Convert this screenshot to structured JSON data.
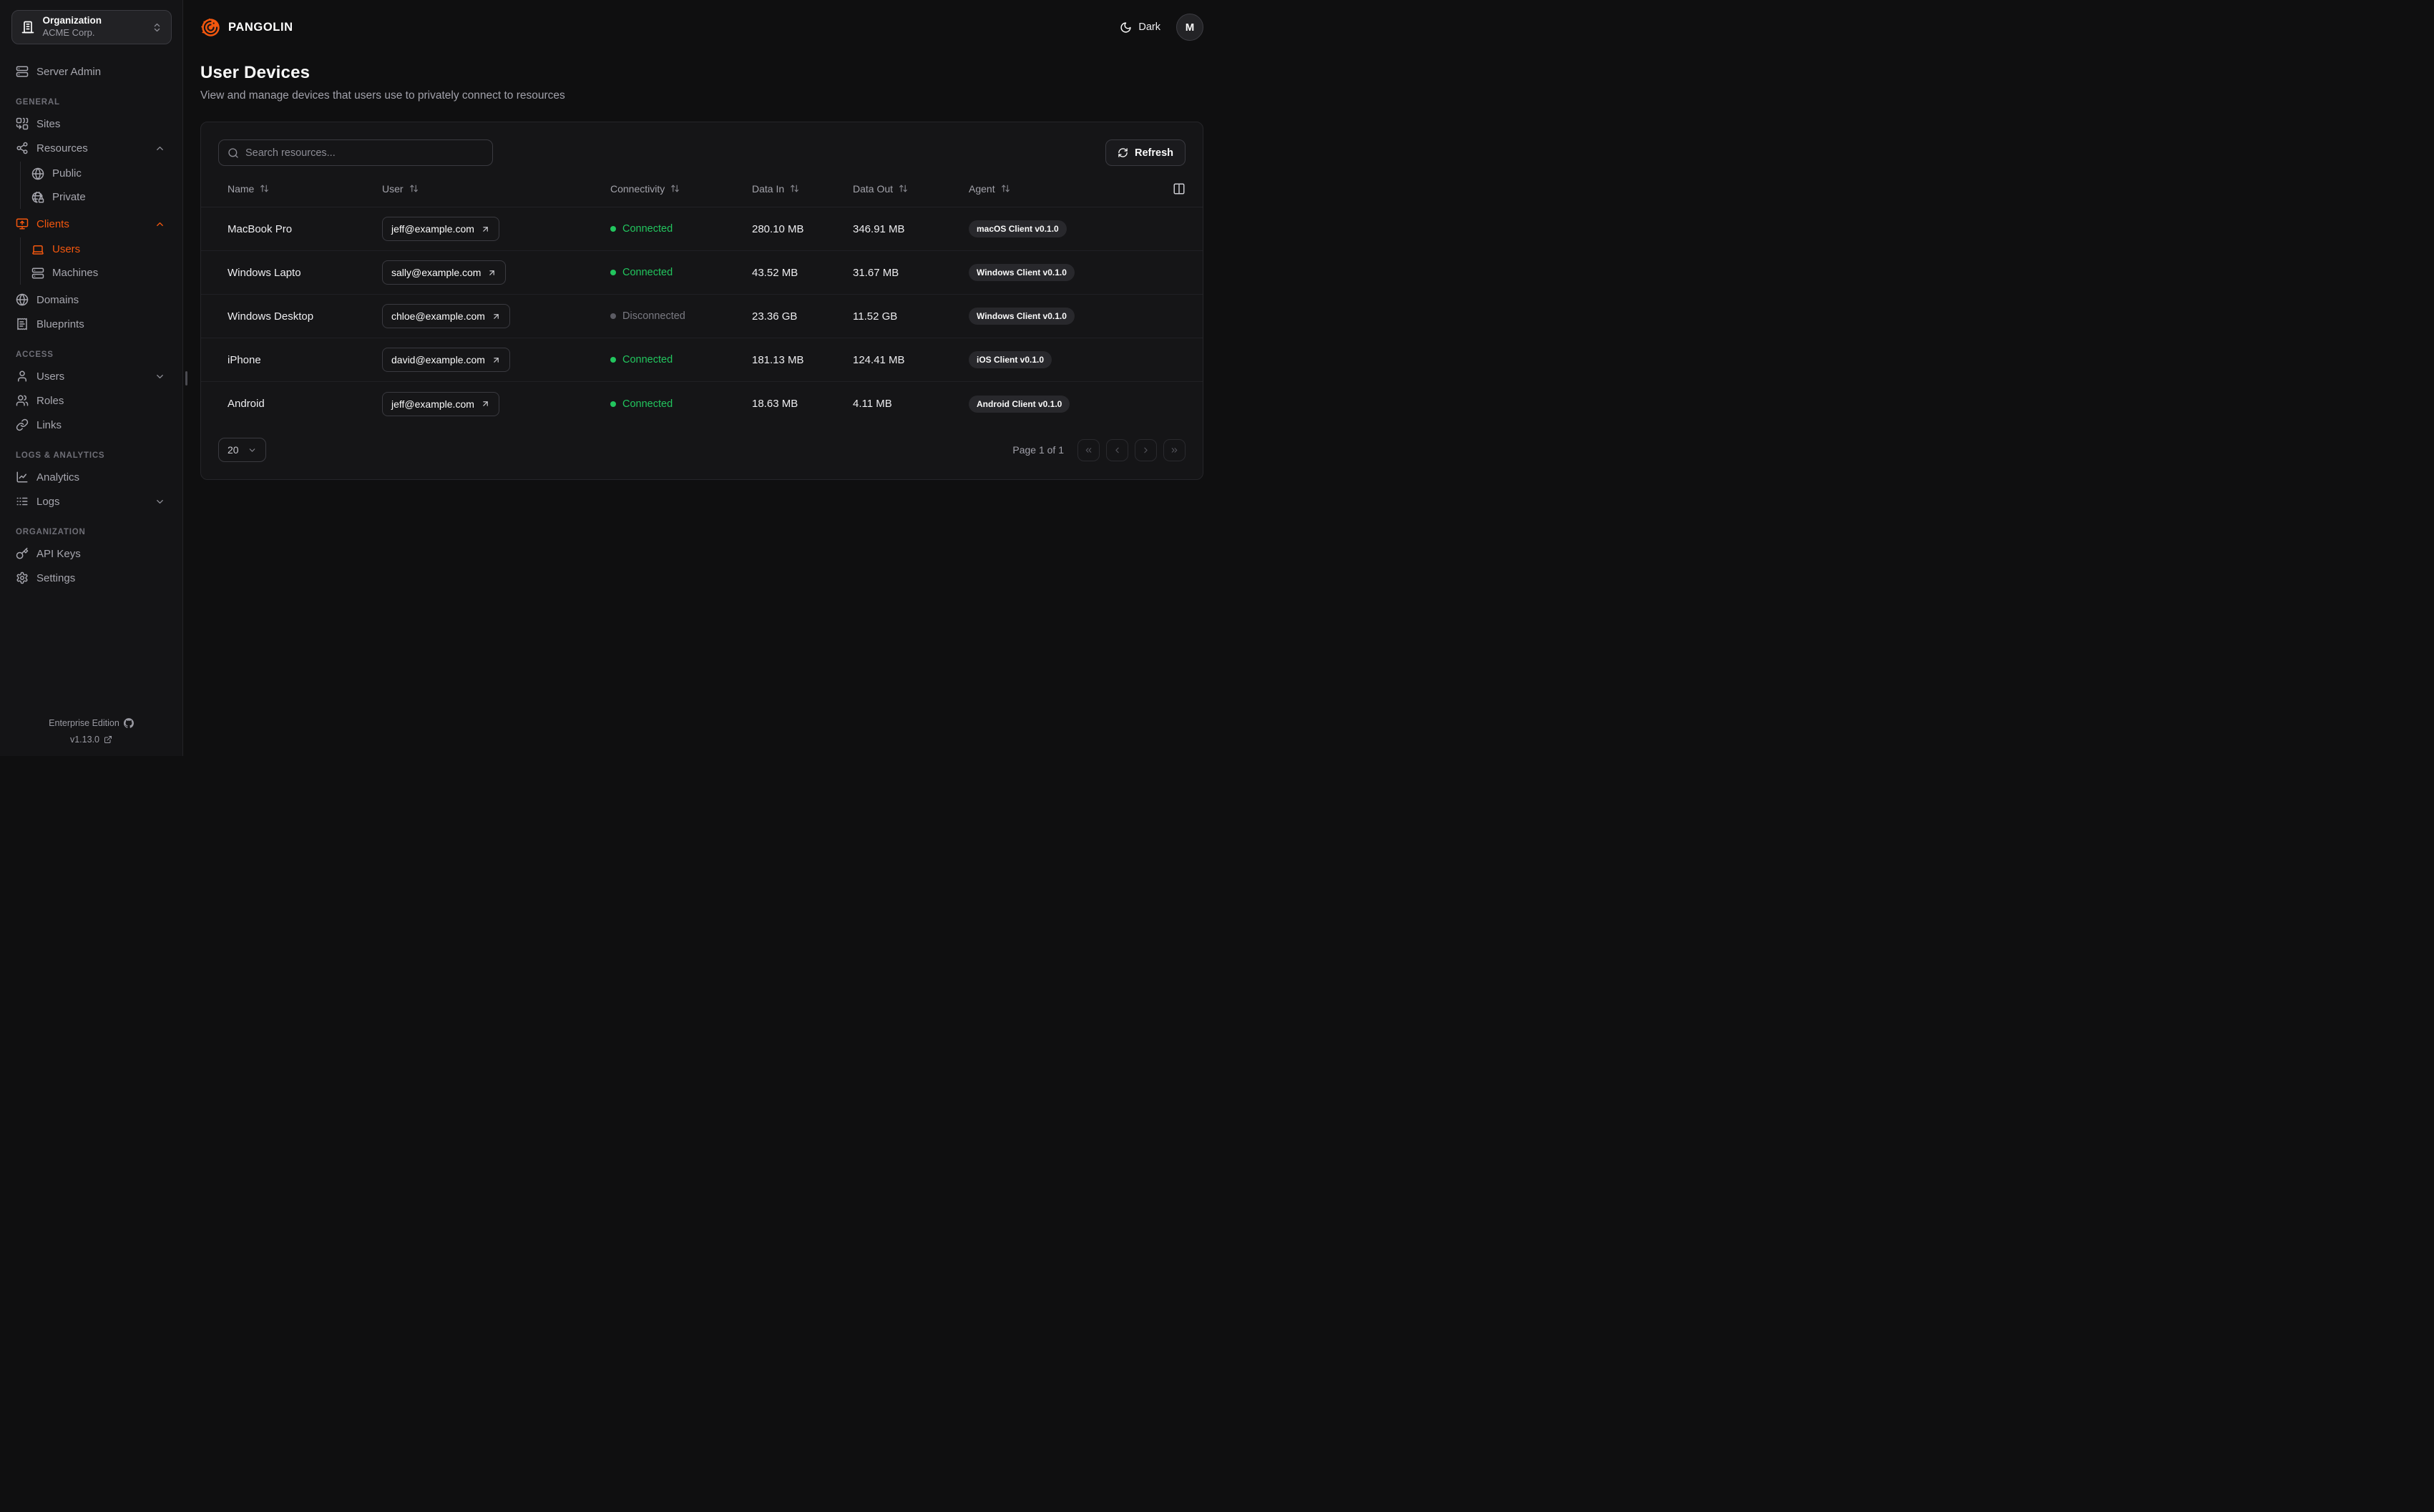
{
  "org_selector": {
    "label": "Organization",
    "value": "ACME Corp."
  },
  "sidebar": {
    "server_admin": "Server Admin",
    "sections": {
      "general": "GENERAL",
      "access": "ACCESS",
      "logs_analytics": "LOGS & ANALYTICS",
      "organization": "ORGANIZATION"
    },
    "items": {
      "sites": "Sites",
      "resources": "Resources",
      "public": "Public",
      "private": "Private",
      "clients": "Clients",
      "client_users": "Users",
      "machines": "Machines",
      "domains": "Domains",
      "blueprints": "Blueprints",
      "users": "Users",
      "roles": "Roles",
      "links": "Links",
      "analytics": "Analytics",
      "logs": "Logs",
      "api_keys": "API Keys",
      "settings": "Settings"
    },
    "footer": {
      "edition": "Enterprise Edition",
      "version": "v1.13.0"
    }
  },
  "header": {
    "brand": "PANGOLIN",
    "theme_label": "Dark",
    "avatar_initial": "M"
  },
  "page": {
    "title": "User Devices",
    "subtitle": "View and manage devices that users use to privately connect to resources"
  },
  "toolbar": {
    "search_placeholder": "Search resources...",
    "refresh_label": "Refresh"
  },
  "table": {
    "columns": {
      "name": "Name",
      "user": "User",
      "connectivity": "Connectivity",
      "data_in": "Data In",
      "data_out": "Data Out",
      "agent": "Agent"
    },
    "rows": [
      {
        "name": "MacBook Pro",
        "user": "jeff@example.com",
        "connectivity": "Connected",
        "connected": true,
        "data_in": "280.10 MB",
        "data_out": "346.91 MB",
        "agent": "macOS Client v0.1.0"
      },
      {
        "name": "Windows Lapto",
        "user": "sally@example.com",
        "connectivity": "Connected",
        "connected": true,
        "data_in": "43.52 MB",
        "data_out": "31.67 MB",
        "agent": "Windows Client v0.1.0"
      },
      {
        "name": "Windows Desktop",
        "user": "chloe@example.com",
        "connectivity": "Disconnected",
        "connected": false,
        "data_in": "23.36 GB",
        "data_out": "11.52 GB",
        "agent": "Windows Client v0.1.0"
      },
      {
        "name": "iPhone",
        "user": "david@example.com",
        "connectivity": "Connected",
        "connected": true,
        "data_in": "181.13 MB",
        "data_out": "124.41 MB",
        "agent": "iOS Client v0.1.0"
      },
      {
        "name": "Android",
        "user": "jeff@example.com",
        "connectivity": "Connected",
        "connected": true,
        "data_in": "18.63 MB",
        "data_out": "4.11 MB",
        "agent": "Android Client v0.1.0"
      }
    ]
  },
  "pagination": {
    "page_size": "20",
    "page_info": "Page 1 of 1"
  },
  "colors": {
    "accent": "#f4570e",
    "connected": "#22c55e",
    "disconnected": "#71717a"
  }
}
